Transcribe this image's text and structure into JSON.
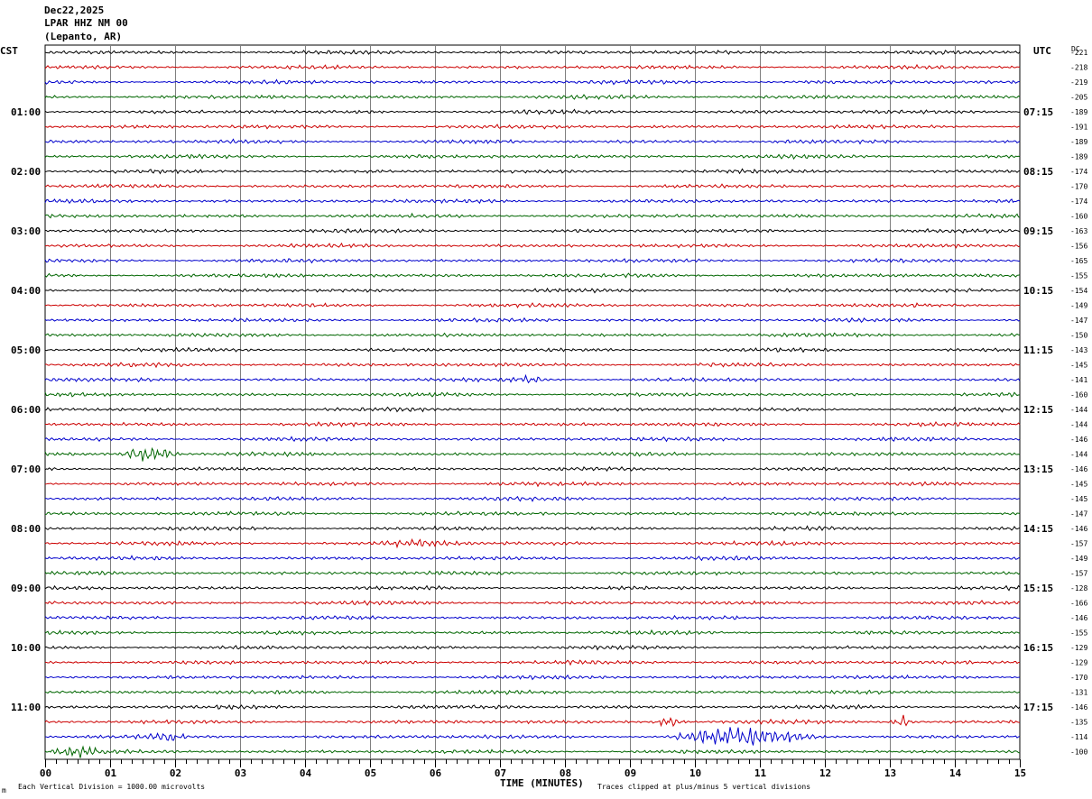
{
  "header": {
    "date": "Dec22,2025",
    "station": "LPAR HHZ NM 00",
    "location": "(Lepanto, AR)",
    "left_zone": "CST",
    "right_zone": "UTC",
    "dc_label": "DC"
  },
  "footer": {
    "xlabel": "TIME (MINUTES)",
    "scale_note": "Each Vertical Division = 1000.00 microvolts",
    "clip_note": "Traces clipped at plus/minus 5 vertical divisions",
    "corner_mark": "m"
  },
  "colors": {
    "trace_cycle": [
      "#000000",
      "#cc0000",
      "#0000cc",
      "#006600"
    ],
    "grid": "#808080",
    "frame": "#000000"
  },
  "chart_data": {
    "type": "line",
    "title": "LPAR HHZ NM 00",
    "xlabel": "TIME (MINUTES)",
    "xlim": [
      0,
      15
    ],
    "x_ticks": [
      "00",
      "01",
      "02",
      "03",
      "04",
      "05",
      "06",
      "07",
      "08",
      "09",
      "10",
      "11",
      "12",
      "13",
      "14",
      "15"
    ],
    "left_hour_labels": [
      "01:00",
      "02:00",
      "03:00",
      "04:00",
      "05:00",
      "06:00",
      "07:00",
      "08:00",
      "09:00",
      "10:00",
      "11:00"
    ],
    "right_hour_labels": [
      "07:15",
      "08:15",
      "09:15",
      "10:15",
      "11:15",
      "12:15",
      "13:15",
      "14:15",
      "15:15",
      "16:15",
      "17:15"
    ],
    "dc_offsets": [
      -221,
      -218,
      -219,
      -205,
      -189,
      -191,
      -189,
      -189,
      -174,
      -170,
      -174,
      -160,
      -163,
      -156,
      -165,
      -155,
      -154,
      -149,
      -147,
      -150,
      -143,
      -145,
      -141,
      -160,
      -144,
      -144,
      -146,
      -144,
      -146,
      -145,
      -145,
      -147,
      -146,
      -157,
      -149,
      -157,
      -128,
      -166,
      -146,
      -155,
      -129,
      -129,
      -170,
      -131,
      -146,
      -135,
      -114,
      -100
    ],
    "events": [
      {
        "row": 27,
        "start_min": 1.1,
        "end_min": 2.1,
        "amplitude": 6
      },
      {
        "row": 22,
        "start_min": 7.0,
        "end_min": 7.8,
        "amplitude": 2
      },
      {
        "row": 46,
        "start_min": 9.5,
        "end_min": 12.0,
        "amplitude": 7
      },
      {
        "row": 46,
        "start_min": 1.5,
        "end_min": 2.2,
        "amplitude": 3
      },
      {
        "row": 45,
        "start_min": 9.3,
        "end_min": 9.9,
        "amplitude": 4
      },
      {
        "row": 45,
        "start_min": 13.0,
        "end_min": 13.4,
        "amplitude": 4
      },
      {
        "row": 33,
        "start_min": 5.0,
        "end_min": 6.5,
        "amplitude": 2
      },
      {
        "row": 47,
        "start_min": 0.0,
        "end_min": 1.0,
        "amplitude": 3
      }
    ]
  }
}
